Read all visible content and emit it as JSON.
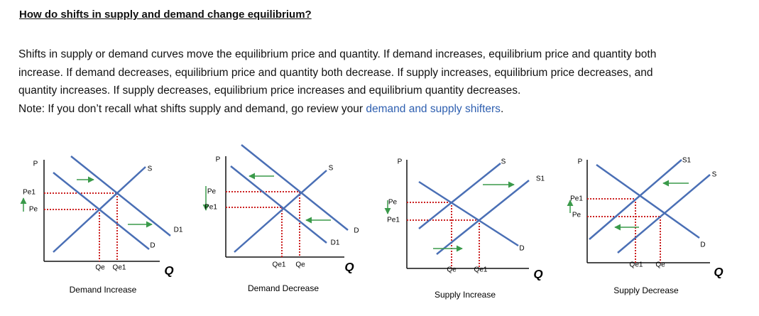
{
  "heading": "How do shifts in supply and demand change equilibrium?",
  "paragraph": {
    "lines": [
      "Shifts in supply or demand curves move the equilibrium price and quantity. If demand increases, equilibrium price and quantity both",
      "increase. If demand decreases, equilibrium price and quantity both decrease. If supply increases, equilibrium price decreases, and",
      "quantity increases. If supply decreases, equilibrium price increases and equilibrium quantity decreases."
    ],
    "note": {
      "text": "Note: If you don’t recall what shifts supply and demand, go review your ",
      "link": "demand and supply shifters",
      "end": "."
    }
  },
  "diagrams": [
    {
      "caption": "Demand Increase",
      "labels": [
        "P",
        "S",
        "D",
        "D1",
        "Pe1",
        "Pe",
        "Qe",
        "Qe1",
        "Q"
      ]
    },
    {
      "caption": "Demand Decrease",
      "labels": [
        "P",
        "S",
        "D",
        "D1",
        "Pe",
        "Pe1",
        "Qe1",
        "Qe",
        "Q"
      ]
    },
    {
      "caption": "Supply Increase",
      "labels": [
        "P",
        "S",
        "S1",
        "D",
        "Pe",
        "Pe1",
        "Qe",
        "Qe1",
        "Q"
      ]
    },
    {
      "caption": "Supply Decrease",
      "labels": [
        "P",
        "S1",
        "S",
        "D",
        "Pe1",
        "Pe",
        "Qe1",
        "Qe",
        "Q"
      ]
    }
  ]
}
